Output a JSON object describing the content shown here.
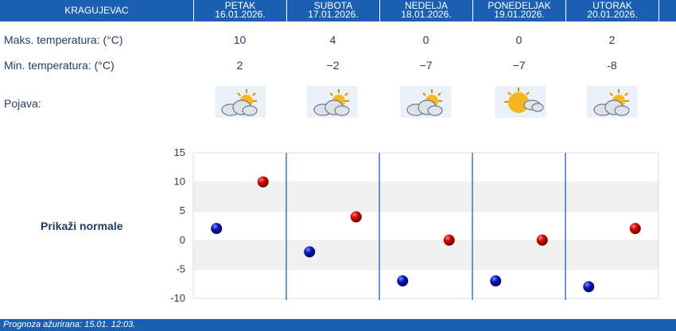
{
  "header": {
    "city": "KRAGUJEVAC",
    "days": [
      {
        "day": "PETAK",
        "date": "16.01.2026."
      },
      {
        "day": "SUBOTA",
        "date": "17.01.2026."
      },
      {
        "day": "NEDELJA",
        "date": "18.01.2026."
      },
      {
        "day": "PONEDELJAK",
        "date": "19.01.2026."
      },
      {
        "day": "UTORAK",
        "date": "20.01.2026."
      }
    ]
  },
  "rows": {
    "max_label": "Maks. temperatura: (°C)",
    "min_label": "Min. temperatura: (°C)",
    "phenomenon_label": "Pojava:",
    "max_values": [
      "10",
      "4",
      "0",
      "0",
      "2"
    ],
    "min_values": [
      "2",
      "−2",
      "−7",
      "−7",
      "-8"
    ],
    "icons": [
      "cloud-sun-icon",
      "cloud-sun-icon",
      "cloud-sun-icon",
      "sun-cloud-icon",
      "cloud-sun-icon"
    ]
  },
  "show_normals_label": "Prikaži normale",
  "footer": {
    "label": "Prognoza ažurirana:",
    "value": "15.01. 12:03."
  },
  "colors": {
    "brand": "#1b5fb0",
    "max_marker": "#cc0000",
    "min_marker": "#0a14a8"
  },
  "chart_data": {
    "type": "scatter",
    "categories": [
      "16.01.2026.",
      "17.01.2026.",
      "18.01.2026.",
      "19.01.2026.",
      "20.01.2026."
    ],
    "series": [
      {
        "values": [
          2,
          -2,
          -7,
          -7,
          -8
        ]
      },
      {
        "values": [
          10,
          4,
          0,
          0,
          2
        ]
      }
    ],
    "ylim": [
      -10,
      15
    ],
    "yticks": [
      "15",
      "10",
      "5",
      "0",
      "-5",
      "-10"
    ],
    "grid": true
  }
}
